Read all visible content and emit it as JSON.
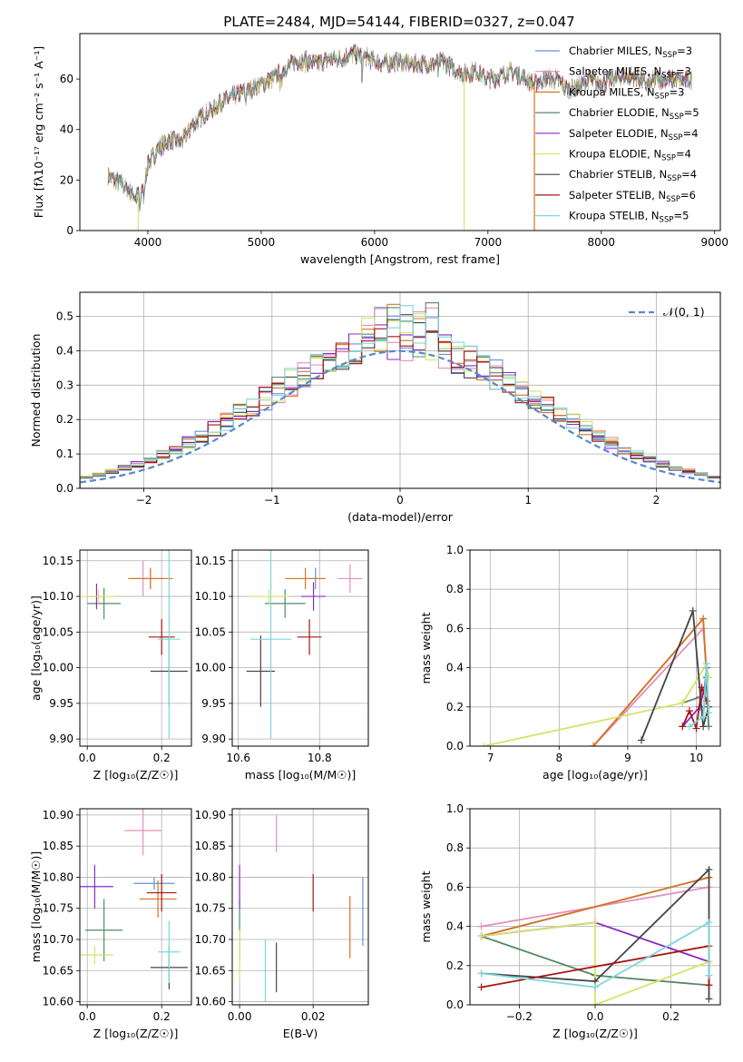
{
  "figure_title": "PLATE=2484, MJD=54144, FIBERID=0327, z=0.047",
  "colors": {
    "chabrier_miles": "#6a8fd8",
    "salpeter_miles": "#e58fbe",
    "kroupa_miles": "#d9741e",
    "chabrier_elodie": "#558866",
    "salpeter_elodie": "#8a2bc4",
    "kroupa_elodie": "#d6e36a",
    "chabrier_stelib": "#444444",
    "salpeter_stelib": "#aa1515",
    "kroupa_stelib": "#7fd6dc",
    "normal": "#5588cc",
    "grid": "#b0b0b0"
  },
  "chart_data": [
    {
      "id": "spectrum",
      "type": "line",
      "title": "PLATE=2484, MJD=54144, FIBERID=0327, z=0.047",
      "xlabel": "wavelength [Angstrom, rest frame]",
      "ylabel": "Flux [fλ10⁻¹⁷ erg cm⁻² s⁻¹ A⁻¹]",
      "xlim": [
        3400,
        9050
      ],
      "ylim": [
        0,
        78
      ],
      "xticks": [
        4000,
        5000,
        6000,
        7000,
        8000,
        9000
      ],
      "yticks": [
        0,
        20,
        40,
        60
      ],
      "grid": false,
      "legend_position": "upper-right",
      "continuum": {
        "x": [
          3650,
          3700,
          3750,
          3800,
          3850,
          3900,
          3950,
          4000,
          4100,
          4200,
          4300,
          4400,
          4500,
          4600,
          4700,
          4800,
          4900,
          5000,
          5100,
          5200,
          5300,
          5400,
          5500,
          5600,
          5700,
          5800,
          5900,
          6000,
          6100,
          6200,
          6300,
          6400,
          6500,
          6600,
          6700,
          6800,
          6900,
          7000,
          7100,
          7200,
          7300,
          7400,
          7500,
          7600,
          7700,
          7800,
          7900,
          8000,
          8100,
          8200,
          8300,
          8400,
          8500,
          8600,
          8700,
          8800
        ],
        "y": [
          22,
          20,
          19,
          17,
          15,
          13,
          16,
          26,
          33,
          36,
          35,
          42,
          46,
          49,
          52,
          54,
          56,
          58,
          60,
          64,
          67,
          67,
          66,
          68,
          68,
          70,
          69,
          67,
          66,
          67,
          66,
          66,
          66,
          67,
          64,
          62,
          63,
          60,
          61,
          63,
          61,
          58,
          60,
          60,
          56,
          57,
          60,
          58,
          60,
          61,
          61,
          58,
          60,
          60,
          59,
          60
        ]
      },
      "series": [
        {
          "name": "Chabrier MILES, N_SSP=3",
          "color": "#6a8fd8"
        },
        {
          "name": "Salpeter MILES, N_SSP=3",
          "color": "#e58fbe"
        },
        {
          "name": "Kroupa MILES, N_SSP=3",
          "color": "#d9741e"
        },
        {
          "name": "Chabrier ELODIE, N_SSP=5",
          "color": "#558866"
        },
        {
          "name": "Salpeter ELODIE, N_SSP=4",
          "color": "#8a2bc4"
        },
        {
          "name": "Kroupa ELODIE, N_SSP=4",
          "color": "#d6e36a"
        },
        {
          "name": "Chabrier STELIB, N_SSP=4",
          "color": "#444444"
        },
        {
          "name": "Salpeter STELIB, N_SSP=6",
          "color": "#aa1515"
        },
        {
          "name": "Kroupa STELIB, N_SSP=5",
          "color": "#7fd6dc"
        }
      ]
    },
    {
      "id": "residuals",
      "type": "histogram",
      "xlabel": "(data-model)/error",
      "ylabel": "Normed distribution",
      "xlim": [
        -2.5,
        2.5
      ],
      "ylim": [
        0,
        0.57
      ],
      "xticks": [
        -2,
        -1,
        0,
        1,
        2
      ],
      "yticks": [
        0.0,
        0.1,
        0.2,
        0.3,
        0.4,
        0.5
      ],
      "grid": true,
      "legend": "𝒩(0, 1)",
      "legend_position": "upper-right",
      "bin_width": 0.1,
      "bin_start": -2.5,
      "series_order": [
        "chabrier_miles",
        "salpeter_miles",
        "kroupa_miles",
        "chabrier_elodie",
        "salpeter_elodie",
        "kroupa_elodie",
        "chabrier_stelib",
        "salpeter_stelib",
        "kroupa_stelib"
      ]
    },
    {
      "id": "age-vs-z",
      "type": "errorbar",
      "xlabel": "Z [log₁₀(Z/Z☉)]",
      "ylabel": "age  [log₁₀(age/yr)]",
      "xlim": [
        -0.02,
        0.28
      ],
      "ylim": [
        9.89,
        10.165
      ],
      "xticks": [
        0.0,
        0.2
      ],
      "yticks": [
        9.9,
        9.95,
        10.0,
        10.05,
        10.1,
        10.15
      ],
      "grid": true,
      "points": [
        {
          "series": "chabrier_miles",
          "x": 0.17,
          "xerr": 0.05,
          "y": 10.125,
          "yerr": 0.013
        },
        {
          "series": "salpeter_miles",
          "x": 0.15,
          "xerr": 0.04,
          "y": 10.125,
          "yerr": 0.025
        },
        {
          "series": "kroupa_miles",
          "x": 0.17,
          "xerr": 0.06,
          "y": 10.125,
          "yerr": 0.015
        },
        {
          "series": "chabrier_elodie",
          "x": 0.045,
          "xerr": 0.045,
          "y": 10.09,
          "yerr": 0.022
        },
        {
          "series": "salpeter_elodie",
          "x": 0.025,
          "xerr": 0.02,
          "y": 10.1,
          "yerr": 0.018
        },
        {
          "series": "kroupa_elodie",
          "x": 0.03,
          "xerr": 0.05,
          "y": 10.1,
          "yerr": 0.01
        },
        {
          "series": "chabrier_stelib",
          "x": 0.22,
          "xerr": 0.05,
          "y": 9.995,
          "yerr": 0.05
        },
        {
          "series": "salpeter_stelib",
          "x": 0.2,
          "xerr": 0.035,
          "y": 10.043,
          "yerr": 0.025
        },
        {
          "series": "kroupa_stelib",
          "x": 0.22,
          "xerr": 0.03,
          "y": 10.04,
          "yerr": 0.14
        }
      ]
    },
    {
      "id": "age-vs-mass",
      "type": "errorbar",
      "xlabel": "mass [log₁₀(M/M☉)]",
      "ylabel": "",
      "xlim": [
        10.585,
        10.92
      ],
      "ylim": [
        9.89,
        10.165
      ],
      "xticks": [
        10.6,
        10.8
      ],
      "yticks": [
        9.9,
        9.95,
        10.0,
        10.05,
        10.1,
        10.15
      ],
      "grid": true,
      "points": [
        {
          "series": "chabrier_miles",
          "x": 10.79,
          "xerr": 0.02,
          "y": 10.125,
          "yerr": 0.015
        },
        {
          "series": "salpeter_miles",
          "x": 10.875,
          "xerr": 0.03,
          "y": 10.125,
          "yerr": 0.02
        },
        {
          "series": "kroupa_miles",
          "x": 10.765,
          "xerr": 0.05,
          "y": 10.125,
          "yerr": 0.015
        },
        {
          "series": "chabrier_elodie",
          "x": 10.715,
          "xerr": 0.05,
          "y": 10.09,
          "yerr": 0.02
        },
        {
          "series": "salpeter_elodie",
          "x": 10.785,
          "xerr": 0.03,
          "y": 10.1,
          "yerr": 0.02
        },
        {
          "series": "kroupa_elodie",
          "x": 10.675,
          "xerr": 0.05,
          "y": 10.1,
          "yerr": 0.01
        },
        {
          "series": "chabrier_stelib",
          "x": 10.655,
          "xerr": 0.035,
          "y": 9.995,
          "yerr": 0.05
        },
        {
          "series": "salpeter_stelib",
          "x": 10.775,
          "xerr": 0.03,
          "y": 10.043,
          "yerr": 0.025
        },
        {
          "series": "kroupa_stelib",
          "x": 10.68,
          "xerr": 0.05,
          "y": 10.04,
          "yerr": 0.14
        }
      ]
    },
    {
      "id": "massweight-vs-age",
      "type": "line",
      "xlabel": "age  [log₁₀(age/yr)]",
      "ylabel": "mass weight",
      "xlim": [
        6.7,
        10.35
      ],
      "ylim": [
        0,
        1
      ],
      "xticks": [
        7,
        8,
        9,
        10
      ],
      "yticks": [
        0.0,
        0.2,
        0.4,
        0.6,
        0.8,
        1.0
      ],
      "grid": true,
      "series": [
        {
          "series": "chabrier_miles",
          "points": [
            [
              8.5,
              0.0
            ],
            [
              10.1,
              0.65
            ],
            [
              10.15,
              0.35
            ]
          ]
        },
        {
          "series": "salpeter_miles",
          "points": [
            [
              8.5,
              0.0
            ],
            [
              10.1,
              0.6
            ],
            [
              10.15,
              0.4
            ]
          ]
        },
        {
          "series": "kroupa_miles",
          "points": [
            [
              8.5,
              0.0
            ],
            [
              10.1,
              0.65
            ],
            [
              10.15,
              0.35
            ]
          ]
        },
        {
          "series": "chabrier_elodie",
          "points": [
            [
              9.8,
              0.22
            ],
            [
              10.05,
              0.25
            ],
            [
              10.1,
              0.15
            ],
            [
              10.15,
              0.35
            ],
            [
              10.18,
              0.1
            ]
          ]
        },
        {
          "series": "salpeter_elodie",
          "points": [
            [
              9.8,
              0.1
            ],
            [
              10.05,
              0.2
            ],
            [
              10.12,
              0.3
            ],
            [
              10.15,
              0.4
            ]
          ]
        },
        {
          "series": "kroupa_elodie",
          "points": [
            [
              6.9,
              0.0
            ],
            [
              9.8,
              0.22
            ],
            [
              10.15,
              0.42
            ],
            [
              10.18,
              0.35
            ]
          ]
        },
        {
          "series": "chabrier_stelib",
          "points": [
            [
              9.2,
              0.03
            ],
            [
              9.95,
              0.69
            ],
            [
              10.1,
              0.1
            ],
            [
              10.18,
              0.2
            ]
          ]
        },
        {
          "series": "salpeter_stelib",
          "points": [
            [
              9.8,
              0.1
            ],
            [
              9.9,
              0.18
            ],
            [
              10.0,
              0.09
            ],
            [
              10.08,
              0.3
            ],
            [
              10.15,
              0.23
            ]
          ]
        },
        {
          "series": "kroupa_stelib",
          "points": [
            [
              9.9,
              0.1
            ],
            [
              10.1,
              0.15
            ],
            [
              10.15,
              0.42
            ],
            [
              10.18,
              0.17
            ]
          ]
        }
      ]
    },
    {
      "id": "mass-vs-z",
      "type": "errorbar",
      "xlabel": "Z [log₁₀(Z/Z☉)]",
      "ylabel": "mass [log₁₀(M/M☉)]",
      "xlim": [
        -0.02,
        0.28
      ],
      "ylim": [
        10.595,
        10.91
      ],
      "xticks": [
        0.0,
        0.2
      ],
      "yticks": [
        10.6,
        10.65,
        10.7,
        10.75,
        10.8,
        10.85,
        10.9
      ],
      "grid": true,
      "points": [
        {
          "series": "chabrier_miles",
          "x": 0.18,
          "xerr": 0.055,
          "y": 10.79,
          "yerr": 0.01
        },
        {
          "series": "salpeter_miles",
          "x": 0.15,
          "xerr": 0.05,
          "y": 10.875,
          "yerr": 0.04
        },
        {
          "series": "kroupa_miles",
          "x": 0.19,
          "xerr": 0.05,
          "y": 10.765,
          "yerr": 0.03
        },
        {
          "series": "chabrier_elodie",
          "x": 0.045,
          "xerr": 0.05,
          "y": 10.715,
          "yerr": 0.05
        },
        {
          "series": "salpeter_elodie",
          "x": 0.02,
          "xerr": 0.05,
          "y": 10.785,
          "yerr": 0.035
        },
        {
          "series": "kroupa_elodie",
          "x": 0.02,
          "xerr": 0.05,
          "y": 10.675,
          "yerr": 0.015
        },
        {
          "series": "chabrier_stelib",
          "x": 0.22,
          "xerr": 0.05,
          "y": 10.655,
          "yerr": 0.035
        },
        {
          "series": "salpeter_stelib",
          "x": 0.2,
          "xerr": 0.04,
          "y": 10.775,
          "yerr": 0.03
        },
        {
          "series": "kroupa_stelib",
          "x": 0.22,
          "xerr": 0.03,
          "y": 10.68,
          "yerr": 0.05
        }
      ]
    },
    {
      "id": "mass-vs-ebv",
      "type": "errorbar",
      "xlabel": "E(B-V)",
      "ylabel": "",
      "xlim": [
        -0.002,
        0.035
      ],
      "ylim": [
        10.595,
        10.91
      ],
      "xticks": [
        0.0,
        0.02
      ],
      "yticks": [
        10.6,
        10.65,
        10.7,
        10.75,
        10.8,
        10.85,
        10.9
      ],
      "grid": true,
      "points": [
        {
          "series": "chabrier_miles",
          "x": 0.0335,
          "xerr": 0.0,
          "y": 10.745,
          "yerr": 0.055
        },
        {
          "series": "salpeter_miles",
          "x": 0.01,
          "xerr": 0.0,
          "y": 10.87,
          "yerr": 0.03
        },
        {
          "series": "kroupa_miles",
          "x": 0.03,
          "xerr": 0.0,
          "y": 10.72,
          "yerr": 0.05
        },
        {
          "series": "chabrier_elodie",
          "x": 0.0,
          "xerr": 0.0,
          "y": 10.715,
          "yerr": 0.05
        },
        {
          "series": "salpeter_elodie",
          "x": 0.0,
          "xerr": 0.0,
          "y": 10.785,
          "yerr": 0.035
        },
        {
          "series": "kroupa_elodie",
          "x": 0.0,
          "xerr": 0.0,
          "y": 10.675,
          "yerr": 0.04
        },
        {
          "series": "chabrier_stelib",
          "x": 0.01,
          "xerr": 0.0,
          "y": 10.655,
          "yerr": 0.04
        },
        {
          "series": "salpeter_stelib",
          "x": 0.02,
          "xerr": 0.0,
          "y": 10.775,
          "yerr": 0.03
        },
        {
          "series": "kroupa_stelib",
          "x": 0.007,
          "xerr": 0.0,
          "y": 10.65,
          "yerr": 0.05
        }
      ]
    },
    {
      "id": "massweight-vs-z",
      "type": "line",
      "xlabel": "Z [log₁₀(Z/Z☉)]",
      "ylabel": "mass weight",
      "xlim": [
        -0.33,
        0.33
      ],
      "ylim": [
        0,
        1
      ],
      "xticks": [
        -0.2,
        0.0,
        0.2
      ],
      "yticks": [
        0.0,
        0.2,
        0.4,
        0.6,
        0.8,
        1.0
      ],
      "grid": true,
      "series": [
        {
          "series": "chabrier_miles",
          "points": [
            [
              -0.3,
              0.35
            ],
            [
              0.3,
              0.65
            ]
          ]
        },
        {
          "series": "salpeter_miles",
          "points": [
            [
              -0.3,
              0.4
            ],
            [
              0.3,
              0.6
            ]
          ]
        },
        {
          "series": "kroupa_miles",
          "points": [
            [
              -0.3,
              0.35
            ],
            [
              0.3,
              0.65
            ]
          ]
        },
        {
          "series": "chabrier_elodie",
          "points": [
            [
              -0.3,
              0.35
            ],
            [
              0.0,
              0.15
            ],
            [
              0.3,
              0.1
            ]
          ]
        },
        {
          "series": "salpeter_elodie",
          "points": [
            [
              -0.3,
              0.35
            ],
            [
              0.0,
              0.42
            ],
            [
              0.3,
              0.22
            ]
          ]
        },
        {
          "series": "kroupa_elodie",
          "points": [
            [
              -0.3,
              0.35
            ],
            [
              0.0,
              0.42
            ],
            [
              0.0,
              0.0
            ],
            [
              0.3,
              0.22
            ]
          ]
        },
        {
          "series": "chabrier_stelib",
          "points": [
            [
              -0.3,
              0.16
            ],
            [
              0.0,
              0.12
            ],
            [
              0.3,
              0.69
            ],
            [
              0.3,
              0.03
            ]
          ]
        },
        {
          "series": "salpeter_stelib",
          "points": [
            [
              -0.3,
              0.09
            ],
            [
              0.3,
              0.3
            ],
            [
              0.3,
              0.1
            ]
          ]
        },
        {
          "series": "kroupa_stelib",
          "points": [
            [
              -0.3,
              0.16
            ],
            [
              0.0,
              0.09
            ],
            [
              0.3,
              0.42
            ],
            [
              0.3,
              0.15
            ]
          ]
        }
      ]
    }
  ]
}
